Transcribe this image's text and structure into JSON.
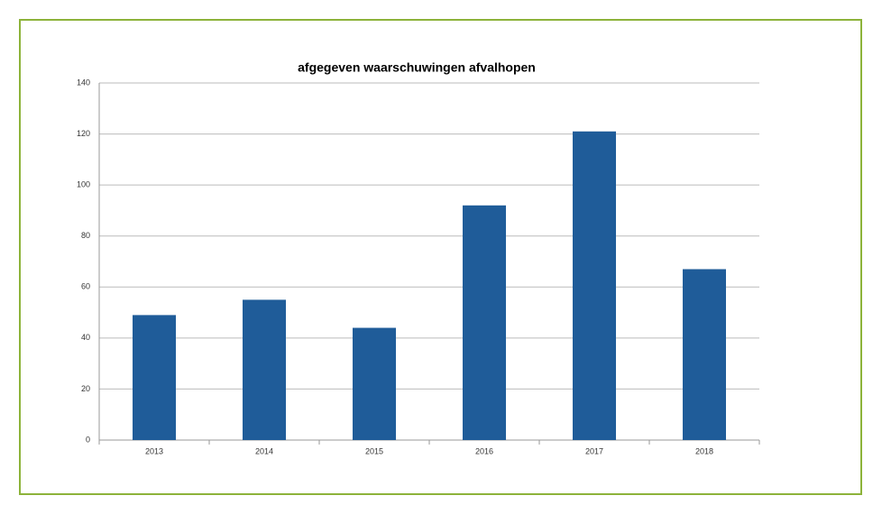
{
  "chart_data": {
    "type": "bar",
    "title": "afgegeven waarschuwingen afvalhopen",
    "categories": [
      "2013",
      "2014",
      "2015",
      "2016",
      "2017",
      "2018"
    ],
    "values": [
      49,
      55,
      44,
      92,
      121,
      67
    ],
    "color": "#1f5c99",
    "ylim": [
      0,
      140
    ],
    "yticks": [
      0,
      20,
      40,
      60,
      80,
      100,
      120,
      140
    ],
    "grid": true
  }
}
